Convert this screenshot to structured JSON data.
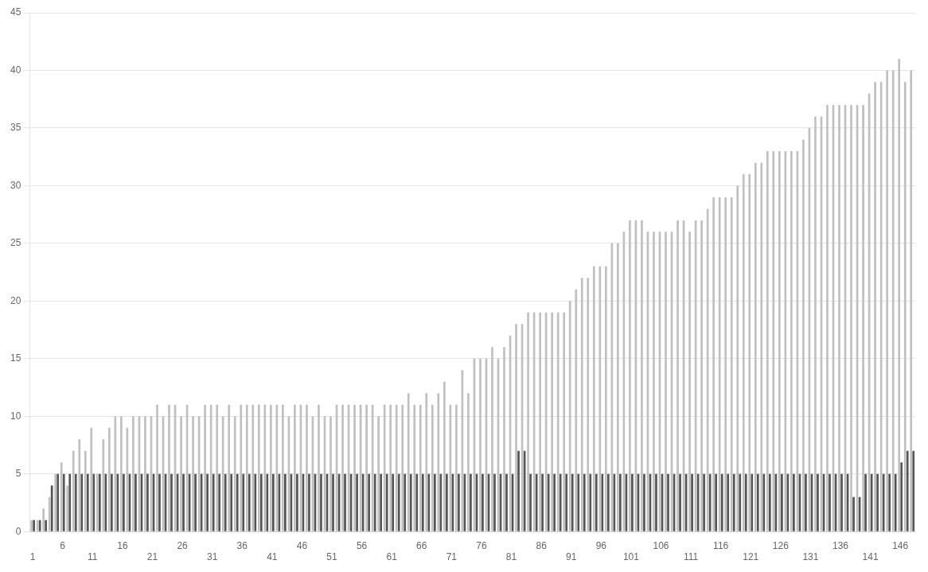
{
  "chart_data": {
    "type": "bar",
    "categories": [
      "1",
      null,
      null,
      null,
      null,
      "6",
      null,
      null,
      null,
      null,
      "11",
      null,
      null,
      null,
      null,
      "16",
      null,
      null,
      null,
      null,
      "21",
      null,
      null,
      null,
      null,
      "26",
      null,
      null,
      null,
      null,
      "31",
      null,
      null,
      null,
      null,
      "36",
      null,
      null,
      null,
      null,
      "41",
      null,
      null,
      null,
      null,
      "46",
      null,
      null,
      null,
      null,
      "51",
      null,
      null,
      null,
      null,
      "56",
      null,
      null,
      null,
      null,
      "61",
      null,
      null,
      null,
      null,
      "66",
      null,
      null,
      null,
      null,
      "71",
      null,
      null,
      null,
      null,
      "76",
      null,
      null,
      null,
      null,
      "81",
      null,
      null,
      null,
      null,
      "86",
      null,
      null,
      null,
      null,
      "91",
      null,
      null,
      null,
      null,
      "96",
      null,
      null,
      null,
      null,
      "101",
      null,
      null,
      null,
      null,
      "106",
      null,
      null,
      null,
      null,
      "111",
      null,
      null,
      null,
      null,
      "116",
      null,
      null,
      null,
      null,
      "121",
      null,
      null,
      null,
      null,
      "126",
      null,
      null,
      null,
      null,
      "131",
      null,
      null,
      null,
      null,
      "136",
      null,
      null,
      null,
      null,
      "141",
      null,
      null,
      null,
      null,
      "146",
      null,
      null
    ],
    "series": [
      {
        "color": "#c0c0c0",
        "values": [
          1,
          1,
          2,
          3,
          5,
          6,
          4,
          7,
          8,
          7,
          9,
          5,
          8,
          9,
          10,
          10,
          9,
          10,
          10,
          10,
          10,
          11,
          10,
          11,
          11,
          10,
          11,
          10,
          10,
          11,
          11,
          11,
          10,
          11,
          10,
          11,
          11,
          11,
          11,
          11,
          11,
          11,
          11,
          10,
          11,
          11,
          11,
          10,
          11,
          10,
          10,
          11,
          11,
          11,
          11,
          11,
          11,
          11,
          10,
          11,
          11,
          11,
          11,
          12,
          11,
          11,
          12,
          11,
          12,
          13,
          11,
          11,
          14,
          12,
          15,
          15,
          15,
          16,
          15,
          16,
          17,
          18,
          18,
          19,
          19,
          19,
          19,
          19,
          19,
          19,
          20,
          21,
          22,
          22,
          23,
          23,
          23,
          25,
          25,
          26,
          27,
          27,
          27,
          26,
          26,
          26,
          26,
          26,
          27,
          27,
          26,
          27,
          27,
          28,
          29,
          29,
          29,
          29,
          30,
          31,
          31,
          32,
          32,
          33,
          33,
          33,
          33,
          33,
          33,
          34,
          35,
          36,
          36,
          37,
          37,
          37,
          37,
          37,
          37,
          37,
          38,
          39,
          39,
          40,
          40,
          41,
          39,
          40
        ]
      },
      {
        "color": "#555555",
        "values": [
          1,
          1,
          1,
          4,
          5,
          5,
          5,
          5,
          5,
          5,
          5,
          5,
          5,
          5,
          5,
          5,
          5,
          5,
          5,
          5,
          5,
          5,
          5,
          5,
          5,
          5,
          5,
          5,
          5,
          5,
          5,
          5,
          5,
          5,
          5,
          5,
          5,
          5,
          5,
          5,
          5,
          5,
          5,
          5,
          5,
          5,
          5,
          5,
          5,
          5,
          5,
          5,
          5,
          5,
          5,
          5,
          5,
          5,
          5,
          5,
          5,
          5,
          5,
          5,
          5,
          5,
          5,
          5,
          5,
          5,
          5,
          5,
          5,
          5,
          5,
          5,
          5,
          5,
          5,
          5,
          5,
          7,
          7,
          5,
          5,
          5,
          5,
          5,
          5,
          5,
          5,
          5,
          5,
          5,
          5,
          5,
          5,
          5,
          5,
          5,
          5,
          5,
          5,
          5,
          5,
          5,
          5,
          5,
          5,
          5,
          5,
          5,
          5,
          5,
          5,
          5,
          5,
          5,
          5,
          5,
          5,
          5,
          5,
          5,
          5,
          5,
          5,
          5,
          5,
          5,
          5,
          5,
          5,
          5,
          5,
          5,
          5,
          3,
          3,
          5,
          5,
          5,
          5,
          5,
          5,
          6,
          7,
          7
        ]
      }
    ],
    "ylim": [
      0,
      45
    ],
    "yticks": [
      0,
      5,
      10,
      15,
      20,
      25,
      30,
      35,
      40,
      45
    ],
    "grid": true
  }
}
